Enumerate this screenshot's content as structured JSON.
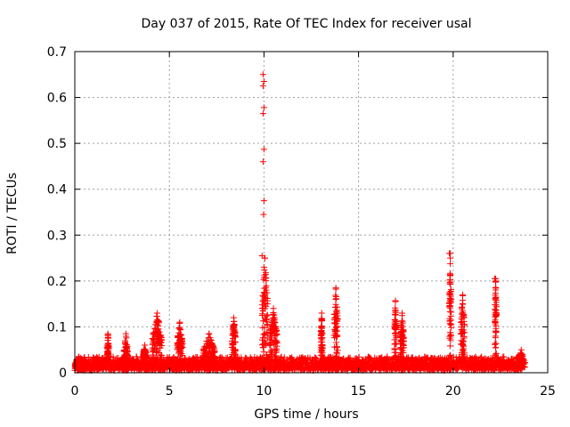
{
  "chart_data": {
    "type": "scatter",
    "title": "Day 037 of 2015, Rate Of TEC Index for receiver usal",
    "xlabel": "GPS time / hours",
    "ylabel": "ROTI / TECUs",
    "xlim": [
      0,
      25
    ],
    "ylim": [
      0,
      0.7
    ],
    "x_ticks": [
      "0",
      "5",
      "10",
      "15",
      "20",
      "25"
    ],
    "y_ticks": [
      "0",
      "0.1",
      "0.2",
      "0.3",
      "0.4",
      "0.5",
      "0.6",
      "0.7"
    ],
    "x_tick_values": [
      0,
      5,
      10,
      15,
      20,
      25
    ],
    "y_tick_values": [
      0,
      0.1,
      0.2,
      0.3,
      0.4,
      0.5,
      0.6,
      0.7
    ],
    "grid": true,
    "marker": "+",
    "color": "#ff0000",
    "data_range_hours": [
      0,
      23.8
    ],
    "baseline_band": [
      0.005,
      0.035
    ],
    "features": [
      {
        "x": 0.0,
        "x_end": 0.4,
        "peak": 0.035
      },
      {
        "x": 1.7,
        "x_end": 1.8,
        "peak": 0.085
      },
      {
        "x": 2.6,
        "x_end": 2.8,
        "peak": 0.085
      },
      {
        "x": 3.6,
        "x_end": 3.8,
        "peak": 0.06
      },
      {
        "x": 4.1,
        "x_end": 4.6,
        "peak": 0.13
      },
      {
        "x": 5.4,
        "x_end": 5.7,
        "peak": 0.11
      },
      {
        "x": 6.8,
        "x_end": 7.4,
        "peak": 0.085
      },
      {
        "x": 8.3,
        "x_end": 8.5,
        "peak": 0.12
      },
      {
        "x": 9.9,
        "x_end": 10.2,
        "peak": 0.25
      },
      {
        "x": 10.3,
        "x_end": 10.7,
        "peak": 0.14
      },
      {
        "x": 13.0,
        "x_end": 13.1,
        "peak": 0.13
      },
      {
        "x": 13.7,
        "x_end": 13.9,
        "peak": 0.185
      },
      {
        "x": 16.9,
        "x_end": 17.0,
        "peak": 0.155
      },
      {
        "x": 17.2,
        "x_end": 17.4,
        "peak": 0.13
      },
      {
        "x": 19.8,
        "x_end": 19.9,
        "peak": 0.26
      },
      {
        "x": 20.4,
        "x_end": 20.6,
        "peak": 0.17
      },
      {
        "x": 22.2,
        "x_end": 22.3,
        "peak": 0.205
      },
      {
        "x": 23.5,
        "x_end": 23.7,
        "peak": 0.05
      }
    ],
    "outliers": [
      {
        "x": 9.95,
        "y": 0.65
      },
      {
        "x": 10.0,
        "y": 0.635
      },
      {
        "x": 9.95,
        "y": 0.625
      },
      {
        "x": 10.0,
        "y": 0.578
      },
      {
        "x": 9.95,
        "y": 0.565
      },
      {
        "x": 10.0,
        "y": 0.487
      },
      {
        "x": 9.95,
        "y": 0.46
      },
      {
        "x": 10.0,
        "y": 0.375
      },
      {
        "x": 9.98,
        "y": 0.345
      },
      {
        "x": 9.9,
        "y": 0.255
      },
      {
        "x": 10.05,
        "y": 0.25
      },
      {
        "x": 10.0,
        "y": 0.23
      },
      {
        "x": 19.8,
        "y": 0.26
      },
      {
        "x": 19.85,
        "y": 0.25
      },
      {
        "x": 22.2,
        "y": 0.205
      },
      {
        "x": 22.25,
        "y": 0.2
      },
      {
        "x": 16.95,
        "y": 0.157
      }
    ]
  }
}
